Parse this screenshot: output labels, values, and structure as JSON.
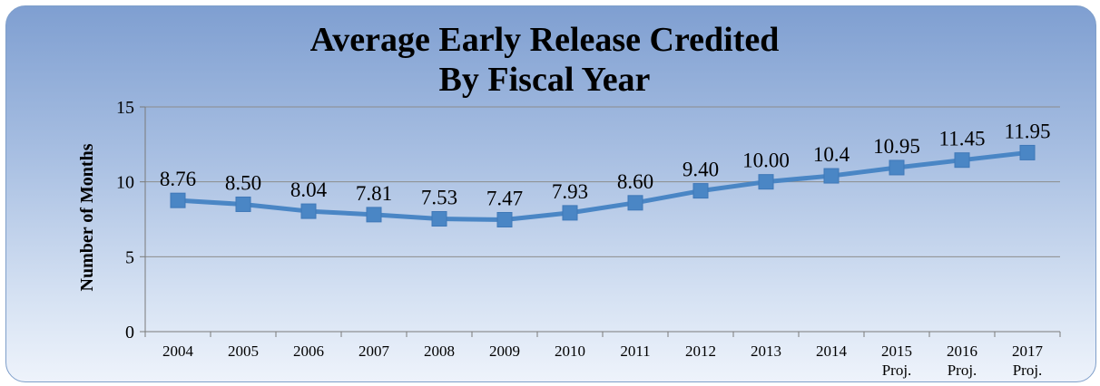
{
  "chart_data": {
    "type": "line",
    "title": "Average Early Release Credited",
    "subtitle": "By Fiscal Year",
    "ylabel": "Number of Months",
    "xlabel": "",
    "ylim": [
      0,
      15
    ],
    "yticks": [
      "0",
      "5",
      "10",
      "15"
    ],
    "grid": true,
    "legend": "none",
    "categories": [
      {
        "year": "2004",
        "note": ""
      },
      {
        "year": "2005",
        "note": ""
      },
      {
        "year": "2006",
        "note": ""
      },
      {
        "year": "2007",
        "note": ""
      },
      {
        "year": "2008",
        "note": ""
      },
      {
        "year": "2009",
        "note": ""
      },
      {
        "year": "2010",
        "note": ""
      },
      {
        "year": "2011",
        "note": ""
      },
      {
        "year": "2012",
        "note": ""
      },
      {
        "year": "2013",
        "note": ""
      },
      {
        "year": "2014",
        "note": ""
      },
      {
        "year": "2015",
        "note": "Proj."
      },
      {
        "year": "2016",
        "note": "Proj."
      },
      {
        "year": "2017",
        "note": "Proj."
      }
    ],
    "series": [
      {
        "values": [
          8.76,
          8.5,
          8.04,
          7.81,
          7.53,
          7.47,
          7.93,
          8.6,
          9.4,
          10.0,
          10.4,
          10.95,
          11.45,
          11.95
        ],
        "labels": [
          "8.76",
          "8.50",
          "8.04",
          "7.81",
          "7.53",
          "7.47",
          "7.93",
          "8.60",
          "9.40",
          "10.00",
          "10.4",
          "10.95",
          "11.45",
          "11.95"
        ],
        "color": "#4a86c5"
      }
    ]
  }
}
